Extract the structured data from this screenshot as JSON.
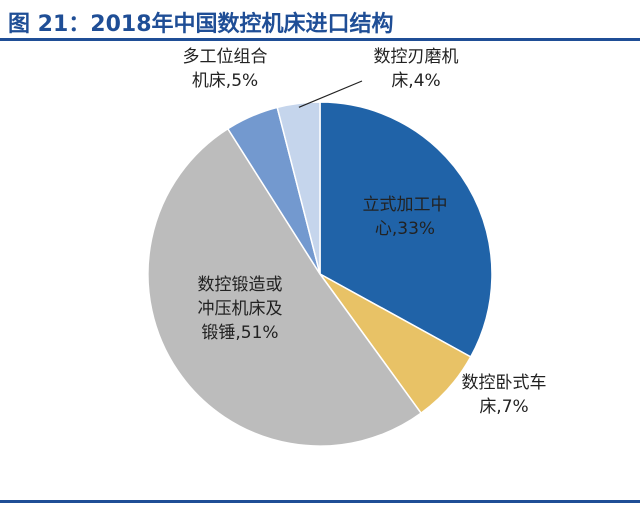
{
  "title": "图 21：2018年中国数控机床进口结构",
  "colors": {
    "title": "#1f4e96",
    "accent_rule": "#1f4e96"
  },
  "chart_data": {
    "type": "pie",
    "title": "图 21：2018年中国数控机床进口结构",
    "start": "12 o'clock",
    "direction": "clockwise",
    "slices": [
      {
        "label_lines": [
          "立式加工中",
          "心,33%"
        ],
        "value": 33,
        "color": "#2063a8",
        "label_color": "#ffffff"
      },
      {
        "label_lines": [
          "数控卧式车",
          "床,7%"
        ],
        "value": 7,
        "color": "#e8c266",
        "label_color": "#222222"
      },
      {
        "label_lines": [
          "数控锻造或",
          "冲压机床及",
          "锻锤,51%"
        ],
        "value": 51,
        "color": "#bcbcbc",
        "label_color": "#222222"
      },
      {
        "label_lines": [
          "多工位组合",
          "机床,5%"
        ],
        "value": 5,
        "color": "#7399cf",
        "label_color": "#222222"
      },
      {
        "label_lines": [
          "数控刃磨机",
          "床,4%"
        ],
        "value": 4,
        "color": "#c5d5ec",
        "label_color": "#222222"
      }
    ]
  }
}
